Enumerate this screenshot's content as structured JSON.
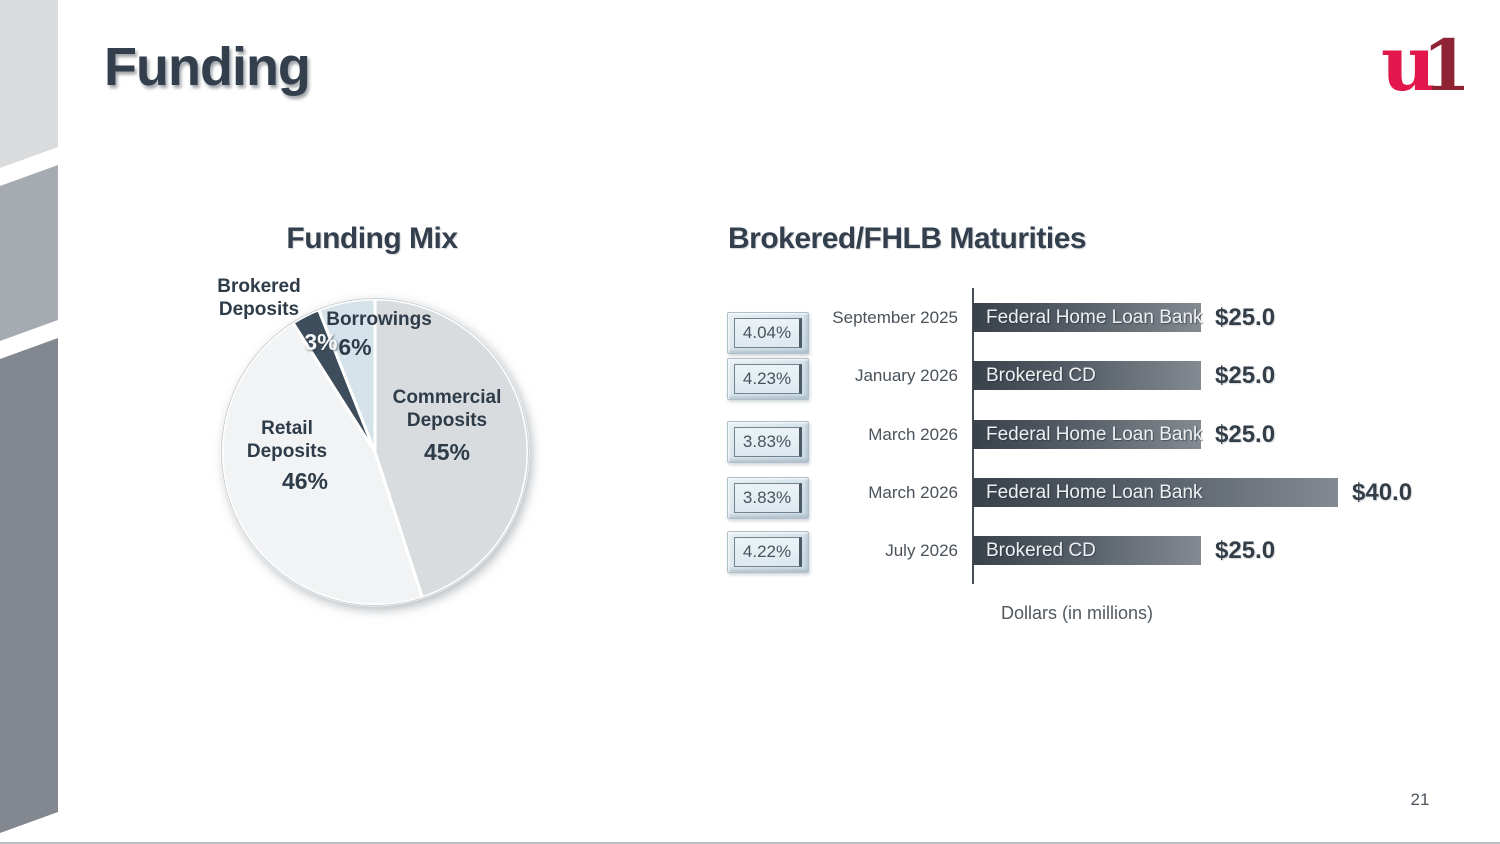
{
  "slide": {
    "title": "Funding",
    "page_number": "21"
  },
  "logo": {
    "u": "u",
    "one": "1",
    "u_color": "#e2174c",
    "one_color": "#8e2433"
  },
  "chart_data": [
    {
      "type": "pie",
      "title": "Funding Mix",
      "start_angle_deg": 0,
      "direction": "clockwise",
      "separator_color": "#ffffff",
      "slices": [
        {
          "label": "Commercial Deposits",
          "value": 45,
          "pct_label": "45%",
          "color": "#d9dcde"
        },
        {
          "label": "Retail Deposits",
          "value": 46,
          "pct_label": "46%",
          "color": "#f1f3f4"
        },
        {
          "label": "Brokered Deposits",
          "value": 3,
          "pct_label": "3%",
          "color": "#3d4d5c"
        },
        {
          "label": "Borrowings",
          "value": 6,
          "pct_label": "6%",
          "color": "#d6e3eb"
        }
      ]
    },
    {
      "type": "bar",
      "title": "Brokered/FHLB Maturities",
      "orientation": "horizontal",
      "xlabel": "Dollars (in millions)",
      "value_axis_max": 40,
      "bar_gradient": [
        "#39414b",
        "#838a91"
      ],
      "rows": [
        {
          "rate": "4.04%",
          "date": "September 2025",
          "label": "Federal Home Loan Bank",
          "value": 25,
          "value_label": "$25.0"
        },
        {
          "rate": "4.23%",
          "date": "January 2026",
          "label": "Brokered CD",
          "value": 25,
          "value_label": "$25.0"
        },
        {
          "rate": "3.83%",
          "date": "March 2026",
          "label": "Federal Home Loan Bank",
          "value": 25,
          "value_label": "$25.0"
        },
        {
          "rate": "3.83%",
          "date": "March 2026",
          "label": "Federal Home Loan Bank",
          "value": 40,
          "value_label": "$40.0"
        },
        {
          "rate": "4.22%",
          "date": "July 2026",
          "label": "Brokered CD",
          "value": 25,
          "value_label": "$25.0"
        }
      ]
    }
  ]
}
